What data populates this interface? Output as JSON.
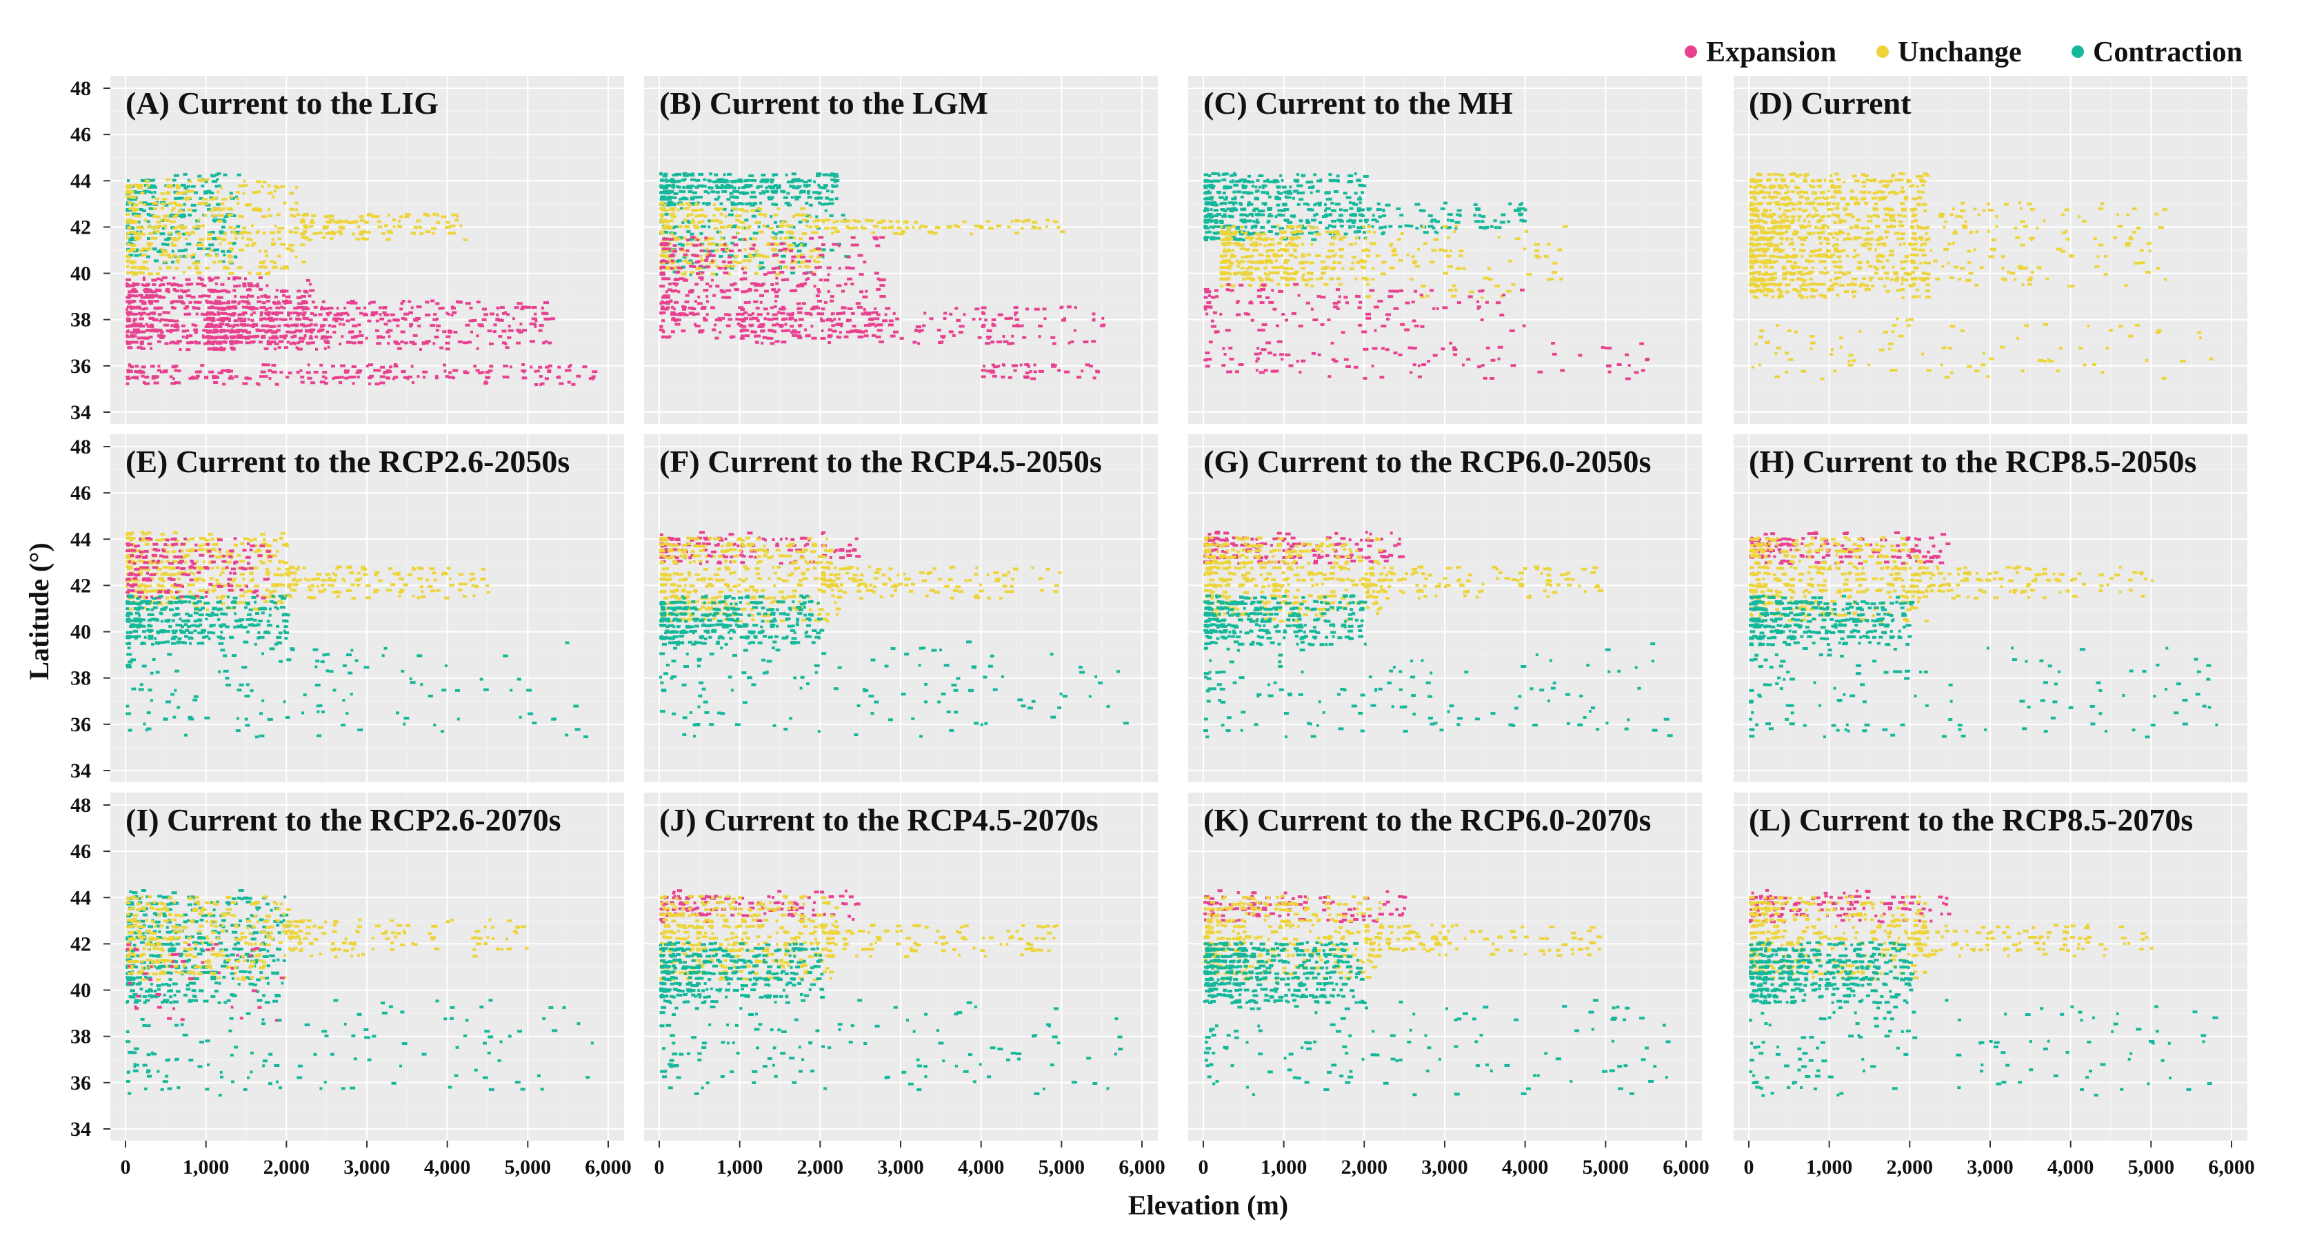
{
  "chart_data": {
    "type": "scatter",
    "xlabel": "Elevation (m)",
    "ylabel": "Latitude (°)",
    "xlim": [
      0,
      6000
    ],
    "ylim": [
      34,
      48
    ],
    "xticks": [
      0,
      1000,
      2000,
      3000,
      4000,
      5000,
      6000
    ],
    "xtick_labels": [
      "0",
      "1,000",
      "2,000",
      "3,000",
      "4,000",
      "5,000",
      "6,000"
    ],
    "yticks": [
      34,
      36,
      38,
      40,
      42,
      44,
      46,
      48
    ],
    "ytick_labels": [
      "34",
      "36",
      "38",
      "40",
      "42",
      "44",
      "46",
      "48"
    ],
    "legend_position": "top-right",
    "series": [
      {
        "name": "Expansion",
        "color": "#e8418f"
      },
      {
        "name": "Unchange",
        "color": "#ecd43a"
      },
      {
        "name": "Contraction",
        "color": "#15b89a"
      }
    ],
    "panels": [
      {
        "label": "(A) Current to the LIG",
        "clusters": [
          {
            "s": 2,
            "x": [
              0,
              1400
            ],
            "y": [
              40.5,
              44.2
            ],
            "n": 260
          },
          {
            "s": 1,
            "x": [
              0,
              2200
            ],
            "y": [
              40,
              44
            ],
            "n": 380
          },
          {
            "s": 1,
            "x": [
              2200,
              4200
            ],
            "y": [
              41.5,
              42.6
            ],
            "n": 110
          },
          {
            "s": 0,
            "x": [
              0,
              2300
            ],
            "y": [
              36.8,
              39.8
            ],
            "n": 520
          },
          {
            "s": 0,
            "x": [
              1000,
              5300
            ],
            "y": [
              36.8,
              38.8
            ],
            "n": 500
          },
          {
            "s": 0,
            "x": [
              0,
              5800
            ],
            "y": [
              35.3,
              36
            ],
            "n": 220
          }
        ]
      },
      {
        "label": "(B) Current to the LGM",
        "clusters": [
          {
            "s": 2,
            "x": [
              0,
              2200
            ],
            "y": [
              42.8,
              44.3
            ],
            "n": 330
          },
          {
            "s": 2,
            "x": [
              0,
              2300
            ],
            "y": [
              40,
              42.5
            ],
            "n": 150
          },
          {
            "s": 1,
            "x": [
              0,
              2000
            ],
            "y": [
              40,
              43
            ],
            "n": 300
          },
          {
            "s": 1,
            "x": [
              2000,
              5000
            ],
            "y": [
              41.8,
              42.3
            ],
            "n": 80
          },
          {
            "s": 0,
            "x": [
              0,
              2800
            ],
            "y": [
              37.2,
              41.5
            ],
            "n": 420
          },
          {
            "s": 0,
            "x": [
              1000,
              5500
            ],
            "y": [
              37,
              38.5
            ],
            "n": 220
          },
          {
            "s": 0,
            "x": [
              4000,
              5500
            ],
            "y": [
              35.5,
              36
            ],
            "n": 40
          }
        ]
      },
      {
        "label": "(C) Current to the MH",
        "clusters": [
          {
            "s": 2,
            "x": [
              0,
              2000
            ],
            "y": [
              41.5,
              44.3
            ],
            "n": 420
          },
          {
            "s": 2,
            "x": [
              1800,
              4000
            ],
            "y": [
              41.8,
              43
            ],
            "n": 110
          },
          {
            "s": 1,
            "x": [
              200,
              2000
            ],
            "y": [
              39.5,
              42
            ],
            "n": 330
          },
          {
            "s": 1,
            "x": [
              2000,
              4500
            ],
            "y": [
              39,
              42
            ],
            "n": 90
          },
          {
            "s": 0,
            "x": [
              0,
              4000
            ],
            "y": [
              37.5,
              39.5
            ],
            "n": 120
          },
          {
            "s": 0,
            "x": [
              0,
              5500
            ],
            "y": [
              35.5,
              37
            ],
            "n": 100
          }
        ]
      },
      {
        "label": "(D) Current",
        "clusters": [
          {
            "s": 1,
            "x": [
              0,
              2200
            ],
            "y": [
              39,
              44.3
            ],
            "n": 950
          },
          {
            "s": 1,
            "x": [
              2000,
              5200
            ],
            "y": [
              39.5,
              43
            ],
            "n": 160
          },
          {
            "s": 1,
            "x": [
              0,
              5800
            ],
            "y": [
              35.5,
              38
            ],
            "n": 90
          }
        ]
      },
      {
        "label": "(E) Current to the RCP2.6-2050s",
        "clusters": [
          {
            "s": 1,
            "x": [
              0,
              2000
            ],
            "y": [
              41,
              44.3
            ],
            "n": 420
          },
          {
            "s": 0,
            "x": [
              0,
              1800
            ],
            "y": [
              41.5,
              44
            ],
            "n": 160
          },
          {
            "s": 2,
            "x": [
              0,
              2000
            ],
            "y": [
              39.5,
              41.5
            ],
            "n": 330
          },
          {
            "s": 1,
            "x": [
              2000,
              4500
            ],
            "y": [
              41.5,
              42.8
            ],
            "n": 130
          },
          {
            "s": 2,
            "x": [
              0,
              5800
            ],
            "y": [
              35.5,
              39.5
            ],
            "n": 130
          }
        ]
      },
      {
        "label": "(F) Current to the RCP4.5-2050s",
        "clusters": [
          {
            "s": 0,
            "x": [
              0,
              2500
            ],
            "y": [
              43,
              44.2
            ],
            "n": 130
          },
          {
            "s": 1,
            "x": [
              0,
              2200
            ],
            "y": [
              40.5,
              44
            ],
            "n": 420
          },
          {
            "s": 2,
            "x": [
              0,
              2000
            ],
            "y": [
              39.5,
              41.5
            ],
            "n": 330
          },
          {
            "s": 1,
            "x": [
              2000,
              5000
            ],
            "y": [
              41.5,
              42.8
            ],
            "n": 120
          },
          {
            "s": 2,
            "x": [
              0,
              5800
            ],
            "y": [
              35.5,
              39.5
            ],
            "n": 130
          }
        ]
      },
      {
        "label": "(G) Current to the RCP6.0-2050s",
        "clusters": [
          {
            "s": 0,
            "x": [
              0,
              2500
            ],
            "y": [
              43,
              44.2
            ],
            "n": 170
          },
          {
            "s": 1,
            "x": [
              0,
              2200
            ],
            "y": [
              40.5,
              44
            ],
            "n": 420
          },
          {
            "s": 2,
            "x": [
              0,
              2000
            ],
            "y": [
              39.5,
              41.5
            ],
            "n": 300
          },
          {
            "s": 1,
            "x": [
              2000,
              5000
            ],
            "y": [
              41.5,
              42.8
            ],
            "n": 120
          },
          {
            "s": 2,
            "x": [
              0,
              5800
            ],
            "y": [
              35.5,
              39.5
            ],
            "n": 130
          }
        ]
      },
      {
        "label": "(H) Current to the RCP8.5-2050s",
        "clusters": [
          {
            "s": 0,
            "x": [
              0,
              2500
            ],
            "y": [
              43,
              44.2
            ],
            "n": 150
          },
          {
            "s": 1,
            "x": [
              0,
              2200
            ],
            "y": [
              40.5,
              44
            ],
            "n": 400
          },
          {
            "s": 2,
            "x": [
              0,
              2000
            ],
            "y": [
              39.5,
              41.5
            ],
            "n": 330
          },
          {
            "s": 1,
            "x": [
              2000,
              5000
            ],
            "y": [
              41.5,
              42.8
            ],
            "n": 120
          },
          {
            "s": 2,
            "x": [
              0,
              5800
            ],
            "y": [
              35.5,
              39.5
            ],
            "n": 130
          }
        ]
      },
      {
        "label": "(I) Current to the RCP2.6-2070s",
        "clusters": [
          {
            "s": 2,
            "x": [
              0,
              2000
            ],
            "y": [
              39.5,
              44.2
            ],
            "n": 480
          },
          {
            "s": 1,
            "x": [
              0,
              2000
            ],
            "y": [
              40.5,
              44
            ],
            "n": 320
          },
          {
            "s": 0,
            "x": [
              0,
              2000
            ],
            "y": [
              38.5,
              42
            ],
            "n": 40
          },
          {
            "s": 1,
            "x": [
              2000,
              5000
            ],
            "y": [
              41.5,
              43
            ],
            "n": 120
          },
          {
            "s": 2,
            "x": [
              0,
              5800
            ],
            "y": [
              35.5,
              39.5
            ],
            "n": 130
          }
        ]
      },
      {
        "label": "(J) Current to the RCP4.5-2070s",
        "clusters": [
          {
            "s": 0,
            "x": [
              0,
              2500
            ],
            "y": [
              43,
              44.2
            ],
            "n": 130
          },
          {
            "s": 1,
            "x": [
              0,
              2200
            ],
            "y": [
              40.5,
              44
            ],
            "n": 400
          },
          {
            "s": 2,
            "x": [
              0,
              2000
            ],
            "y": [
              39.5,
              42
            ],
            "n": 330
          },
          {
            "s": 1,
            "x": [
              2000,
              5000
            ],
            "y": [
              41.5,
              42.8
            ],
            "n": 110
          },
          {
            "s": 2,
            "x": [
              0,
              5800
            ],
            "y": [
              35.5,
              39.5
            ],
            "n": 130
          }
        ]
      },
      {
        "label": "(K) Current to the RCP6.0-2070s",
        "clusters": [
          {
            "s": 0,
            "x": [
              0,
              2500
            ],
            "y": [
              43,
              44.2
            ],
            "n": 110
          },
          {
            "s": 1,
            "x": [
              0,
              2200
            ],
            "y": [
              40.5,
              44
            ],
            "n": 360
          },
          {
            "s": 2,
            "x": [
              0,
              2000
            ],
            "y": [
              39.5,
              42
            ],
            "n": 420
          },
          {
            "s": 1,
            "x": [
              2000,
              5000
            ],
            "y": [
              41.5,
              42.8
            ],
            "n": 110
          },
          {
            "s": 2,
            "x": [
              0,
              5800
            ],
            "y": [
              35.5,
              39.5
            ],
            "n": 130
          }
        ]
      },
      {
        "label": "(L) Current to the RCP8.5-2070s",
        "clusters": [
          {
            "s": 0,
            "x": [
              0,
              2500
            ],
            "y": [
              43,
              44.2
            ],
            "n": 130
          },
          {
            "s": 1,
            "x": [
              0,
              2200
            ],
            "y": [
              40.5,
              44
            ],
            "n": 360
          },
          {
            "s": 2,
            "x": [
              0,
              2000
            ],
            "y": [
              39.5,
              42
            ],
            "n": 420
          },
          {
            "s": 1,
            "x": [
              2000,
              5000
            ],
            "y": [
              41.5,
              42.8
            ],
            "n": 110
          },
          {
            "s": 2,
            "x": [
              0,
              5800
            ],
            "y": [
              35.5,
              39.5
            ],
            "n": 130
          }
        ]
      }
    ]
  }
}
